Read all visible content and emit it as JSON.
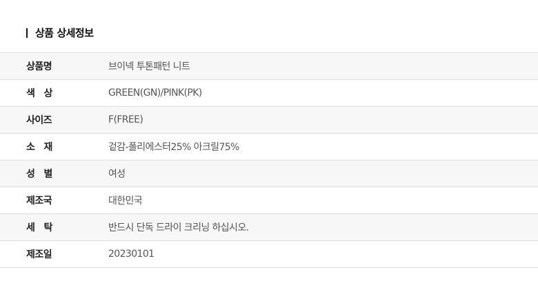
{
  "title": "상품 상세정보",
  "rows": [
    {
      "label": "상품명",
      "value": "브이넥 투톤패턴 니트"
    },
    {
      "label": "색   상",
      "value": "GREEN(GN)/PINK(PK)"
    },
    {
      "label": "사이즈",
      "value": "F(FREE)"
    },
    {
      "label": "소   재",
      "value": "겉감-폴리에스터25% 아크릴75%"
    },
    {
      "label": "성   별",
      "value": "여성"
    },
    {
      "label": "제조국",
      "value": "대한민국"
    },
    {
      "label": "세   탁",
      "value": "반드시 단독 드라이 크리닝 하십시오."
    },
    {
      "label": "제조일",
      "value": "20230101"
    }
  ]
}
